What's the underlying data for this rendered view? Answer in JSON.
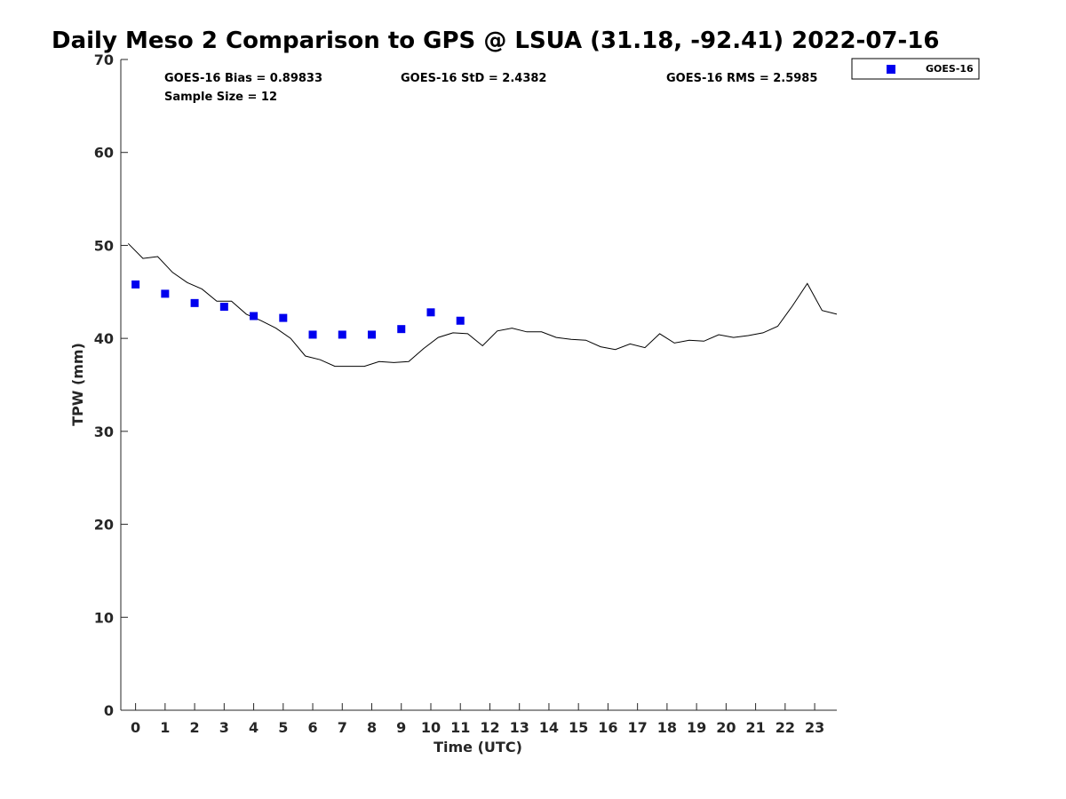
{
  "chart_data": {
    "type": "scatter",
    "title": "Daily Meso 2 Comparison to GPS @ LSUA (31.18, -92.41) 2022-07-16",
    "xlabel": "Time (UTC)",
    "ylabel": "TPW (mm)",
    "xlim": [
      -0.5,
      23.75
    ],
    "ylim": [
      0,
      70
    ],
    "xticks": [
      0,
      1,
      2,
      3,
      4,
      5,
      6,
      7,
      8,
      9,
      10,
      11,
      12,
      13,
      14,
      15,
      16,
      17,
      18,
      19,
      20,
      21,
      22,
      23
    ],
    "yticks": [
      0,
      10,
      20,
      30,
      40,
      50,
      60,
      70
    ],
    "grid": false,
    "legend_position": "top-right",
    "stats": {
      "bias": "GOES-16 Bias = 0.89833",
      "std": "GOES-16 StD = 2.4382",
      "rms": "GOES-16 RMS = 2.5985",
      "sample": "Sample Size = 12"
    },
    "series": [
      {
        "name": "GOES-16",
        "kind": "scatter",
        "color": "#0000ee",
        "x": [
          0,
          1,
          2,
          3,
          4,
          5,
          6,
          7,
          8,
          9,
          10,
          11
        ],
        "y": [
          45.8,
          44.8,
          43.8,
          43.4,
          42.4,
          42.2,
          40.4,
          40.4,
          40.4,
          41.0,
          42.8,
          41.9
        ]
      },
      {
        "kind": "line",
        "color": "#000000",
        "x": [
          -0.25,
          0.25,
          0.75,
          1.25,
          1.75,
          2.25,
          2.75,
          3.25,
          3.75,
          4.25,
          4.75,
          5.25,
          5.75,
          6.25,
          6.75,
          7.25,
          7.75,
          8.25,
          8.75,
          9.25,
          9.75,
          10.25,
          10.75,
          11.25,
          11.75,
          12.25,
          12.75,
          13.25,
          13.75,
          14.25,
          14.75,
          15.25,
          15.75,
          16.25,
          16.75,
          17.25,
          17.75,
          18.25,
          18.75,
          19.25,
          19.75,
          20.25,
          20.75,
          21.25,
          21.75,
          22.25,
          22.75,
          23.25,
          23.75
        ],
        "y": [
          50.2,
          48.6,
          48.8,
          47.1,
          46.0,
          45.3,
          44.0,
          44.0,
          42.6,
          41.9,
          41.1,
          40.0,
          38.1,
          37.7,
          37.0,
          37.0,
          37.0,
          37.5,
          37.4,
          37.5,
          38.9,
          40.1,
          40.6,
          40.5,
          39.2,
          40.8,
          41.1,
          40.7,
          40.7,
          40.1,
          39.9,
          39.8,
          39.1,
          38.8,
          39.4,
          39.0,
          40.5,
          39.5,
          39.8,
          39.7,
          40.4,
          40.1,
          40.3,
          40.6,
          41.3,
          43.5,
          45.9,
          43.0,
          42.6
        ]
      }
    ]
  }
}
